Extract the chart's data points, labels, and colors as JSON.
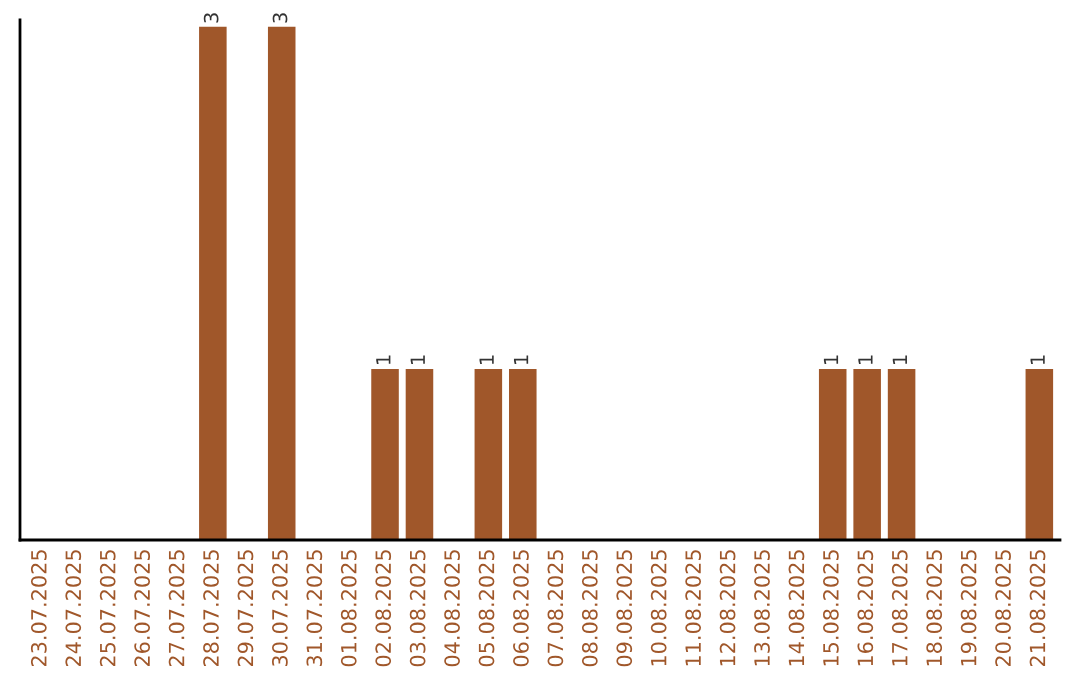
{
  "chart_data": {
    "type": "bar",
    "categories": [
      "23.07.2025",
      "24.07.2025",
      "25.07.2025",
      "26.07.2025",
      "27.07.2025",
      "28.07.2025",
      "29.07.2025",
      "30.07.2025",
      "31.07.2025",
      "01.08.2025",
      "02.08.2025",
      "03.08.2025",
      "04.08.2025",
      "05.08.2025",
      "06.08.2025",
      "07.08.2025",
      "08.08.2025",
      "09.08.2025",
      "10.08.2025",
      "11.08.2025",
      "12.08.2025",
      "13.08.2025",
      "14.08.2025",
      "15.08.2025",
      "16.08.2025",
      "17.08.2025",
      "18.08.2025",
      "19.08.2025",
      "20.08.2025",
      "21.08.2025"
    ],
    "values": [
      0,
      0,
      0,
      0,
      0,
      3,
      0,
      3,
      0,
      0,
      1,
      1,
      0,
      1,
      1,
      0,
      0,
      0,
      0,
      0,
      0,
      0,
      0,
      1,
      1,
      1,
      0,
      0,
      0,
      1
    ],
    "value_labels": [
      null,
      null,
      null,
      null,
      null,
      "3",
      null,
      "3",
      null,
      null,
      "1",
      "1",
      null,
      "1",
      "1",
      null,
      null,
      null,
      null,
      null,
      null,
      null,
      null,
      "1",
      "1",
      "1",
      null,
      null,
      null,
      "1"
    ],
    "color": "#a0572a",
    "ylim": [
      0,
      3.04
    ],
    "tick_labels": "x",
    "grid": false,
    "legend": false
  }
}
